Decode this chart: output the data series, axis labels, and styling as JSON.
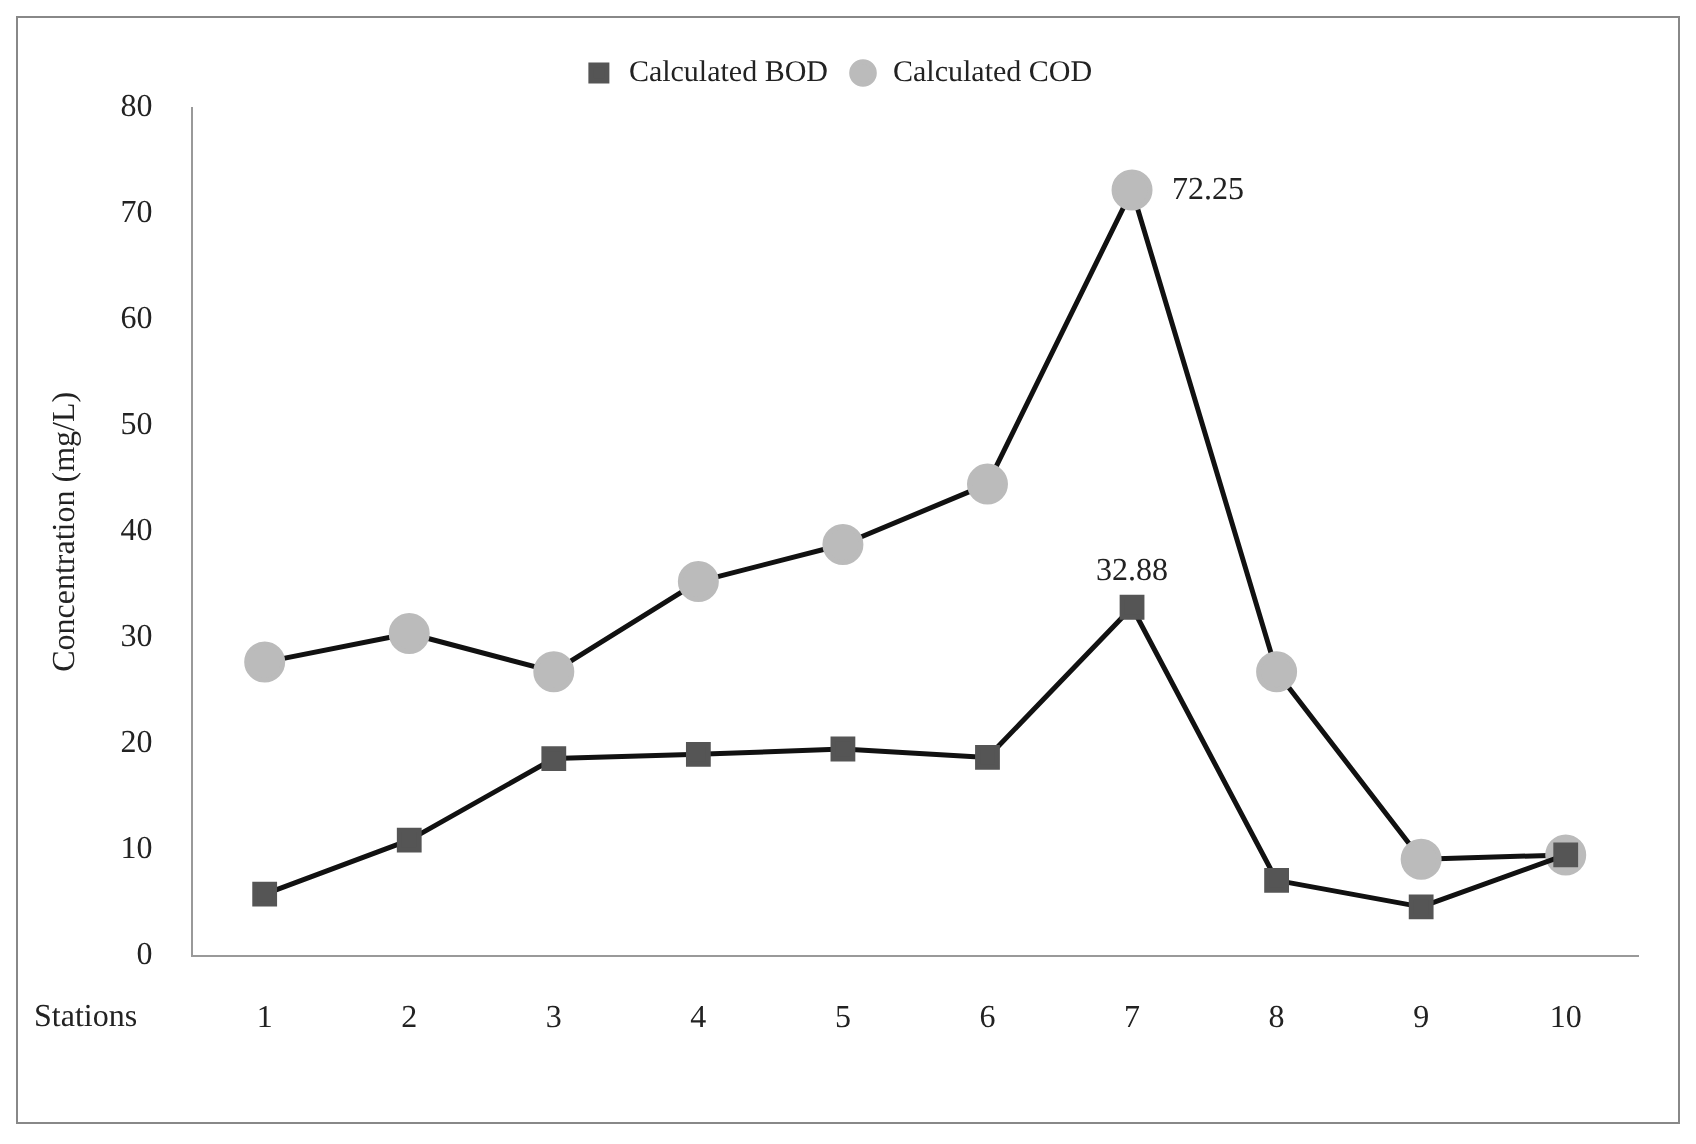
{
  "chart_data": {
    "type": "line",
    "xlabel": "Stations",
    "ylabel": "Concentration (mg/L)",
    "categories": [
      "1",
      "2",
      "3",
      "4",
      "5",
      "6",
      "7",
      "8",
      "9",
      "10"
    ],
    "series": [
      {
        "name": "Calculated BOD",
        "color": "#555555",
        "marker": "square",
        "values": [
          5.8,
          10.9,
          18.6,
          19.0,
          19.5,
          18.7,
          32.88,
          7.1,
          4.6,
          9.5
        ],
        "value_labels": [
          null,
          null,
          null,
          null,
          null,
          null,
          "32.88",
          null,
          null,
          null
        ]
      },
      {
        "name": "Calculated COD",
        "color": "#bbbbbb",
        "marker": "circle",
        "values": [
          27.7,
          30.4,
          26.8,
          35.3,
          38.8,
          44.5,
          72.25,
          26.8,
          9.1,
          9.5
        ],
        "value_labels": [
          null,
          null,
          null,
          null,
          null,
          null,
          "72.25",
          null,
          null,
          null
        ]
      }
    ],
    "ylim": [
      0,
      80
    ],
    "yticks": [
      0,
      10,
      20,
      30,
      40,
      50,
      60,
      70,
      80
    ],
    "grid": false,
    "legend": "top",
    "line_style": "solid"
  }
}
